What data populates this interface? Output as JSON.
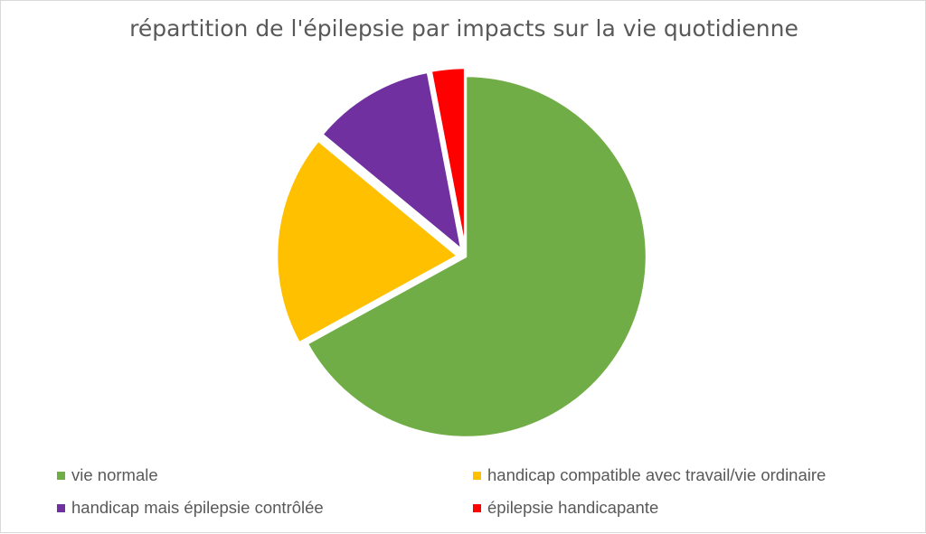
{
  "chart_data": {
    "type": "pie",
    "title": "répartition de l'épilepsie par impacts sur la vie quotidienne",
    "categories": [
      "vie normale",
      "handicap compatible avec travail/vie ordinaire",
      "handicap mais épilepsie contrôlée",
      "épilepsie handicapante"
    ],
    "values": [
      67,
      19,
      11,
      3
    ],
    "colors": [
      "#70ad47",
      "#ffc000",
      "#7030a0",
      "#ff0000"
    ],
    "exploded": true,
    "legend": "bottom"
  }
}
